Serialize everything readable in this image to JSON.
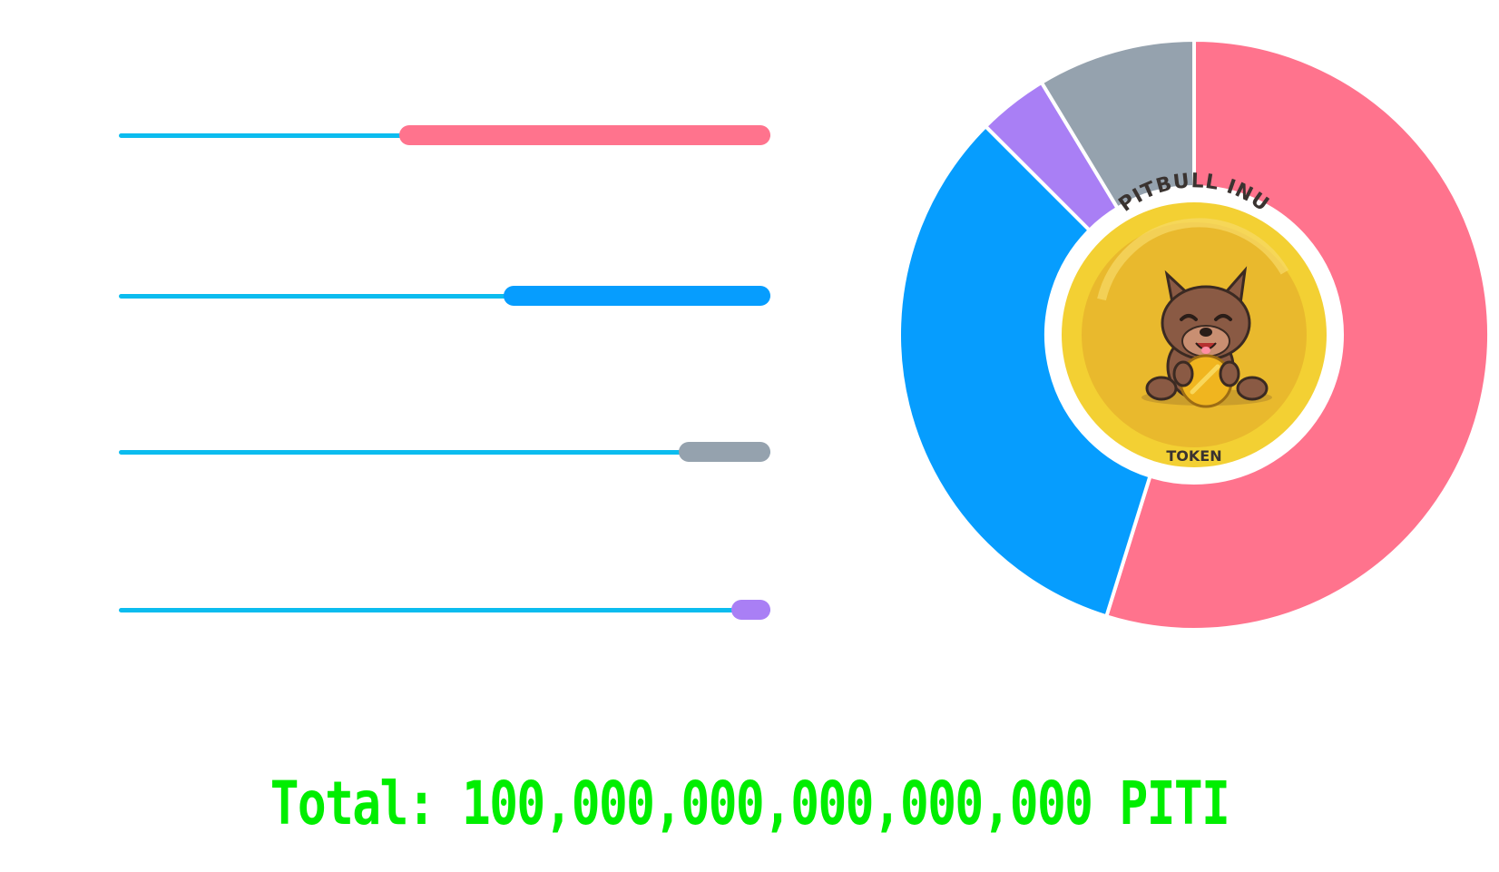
{
  "total_label": "Total: 100,000,000,000,000,000 PITI",
  "total_color": "#00ee00",
  "coin": {
    "title": "PITBULL INU",
    "subtitle": "TOKEN",
    "logo_colors": {
      "gold": "#f3d033",
      "gold_dark": "#e9b92d",
      "dog": "#8a5a44"
    }
  },
  "chart_data": [
    {
      "type": "bar",
      "orientation": "horizontal",
      "max": 100,
      "values": [
        57,
        41,
        14,
        6
      ],
      "colors": [
        "#ff738d",
        "#069dfe",
        "#95a2ae",
        "#a97ff5"
      ],
      "track_color": "#0bbcef"
    },
    {
      "type": "pie",
      "style": "donut",
      "values": [
        57,
        34,
        4,
        9
      ],
      "colors": [
        "#ff738d",
        "#069dfe",
        "#a97ff5",
        "#95a2ae"
      ],
      "start": "top",
      "direction": "clockwise"
    }
  ]
}
